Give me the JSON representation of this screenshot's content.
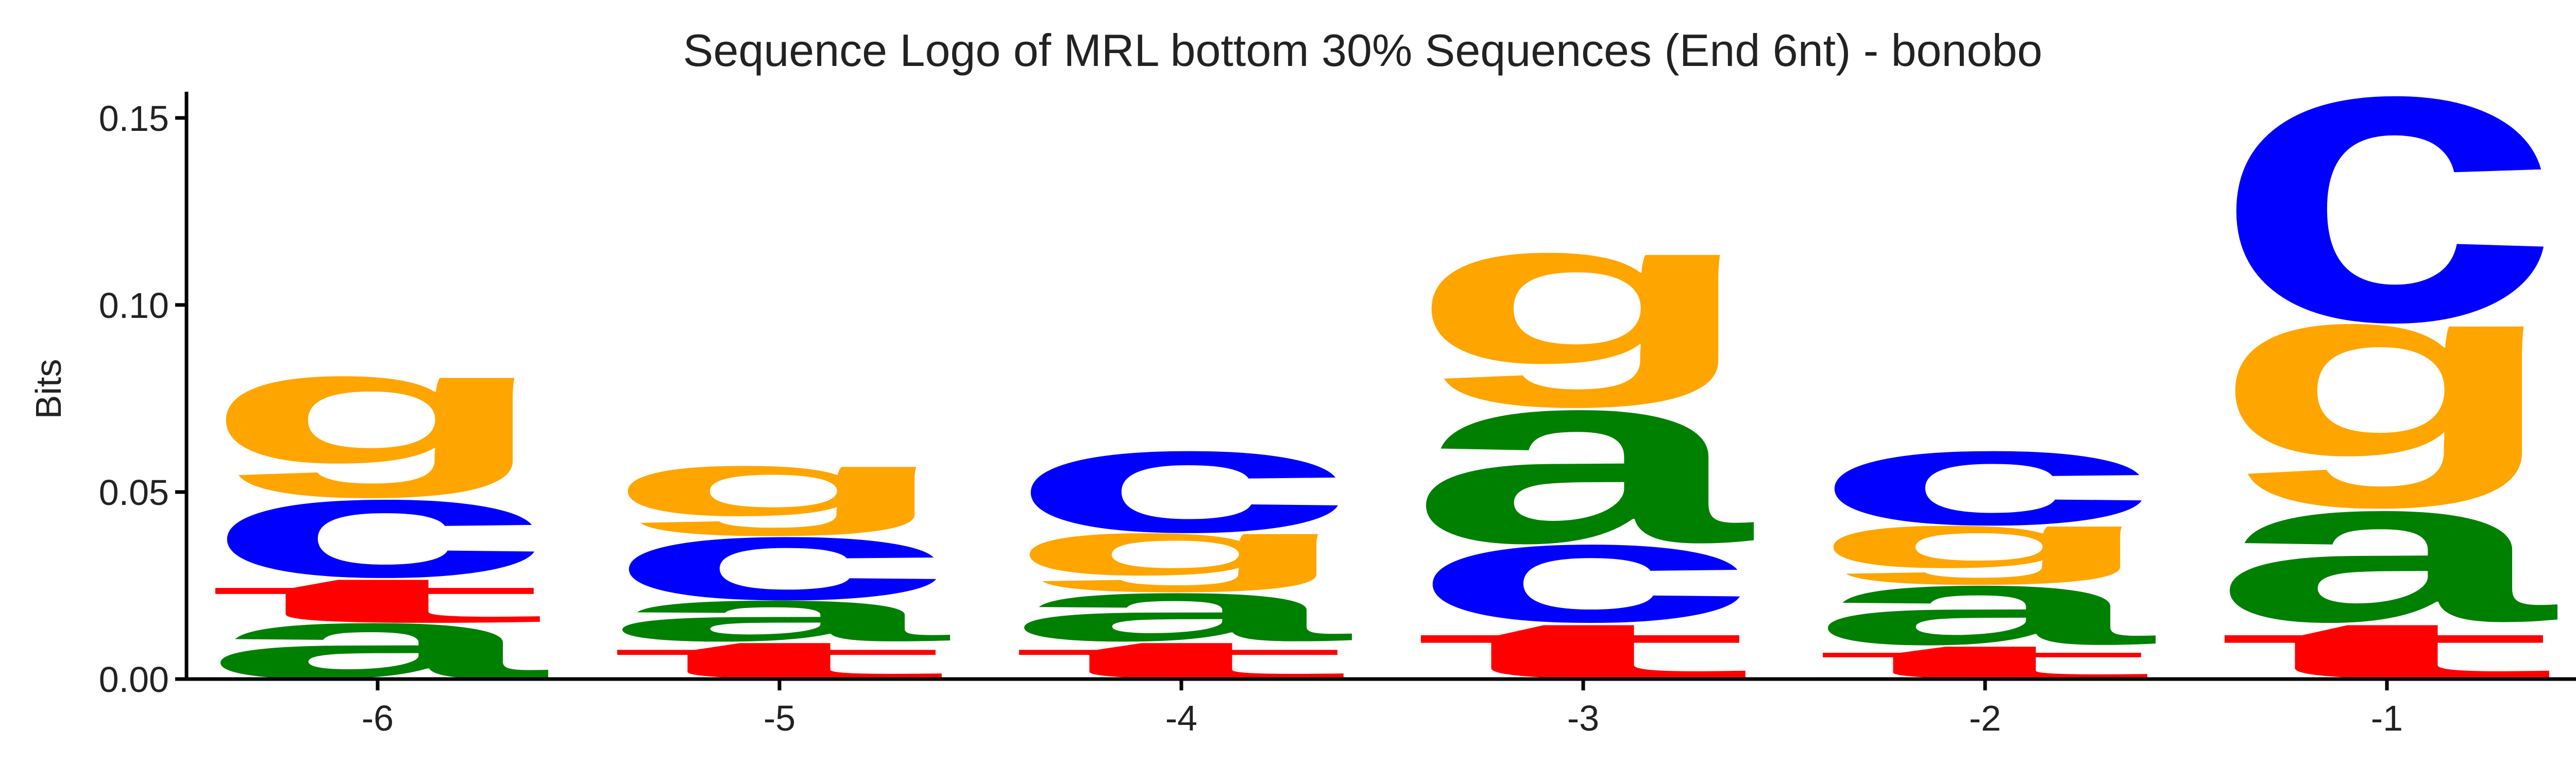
{
  "chart_data": {
    "type": "sequence_logo",
    "title": "Sequence Logo of MRL bottom 30% Sequences (End 6nt) - bonobo",
    "ylabel": "Bits",
    "xlabel": "",
    "ylim": [
      0,
      0.157
    ],
    "yticks": [
      0.0,
      0.05,
      0.1,
      0.15
    ],
    "ytick_labels": [
      "0.00",
      "0.05",
      "0.10",
      "0.15"
    ],
    "positions": [
      "-6",
      "-5",
      "-4",
      "-3",
      "-2",
      "-1"
    ],
    "colors": {
      "a": "#008000",
      "c": "#0000ff",
      "g": "#ffa500",
      "t": "#ff0000"
    },
    "stacks": [
      {
        "position": "-6",
        "letters": [
          {
            "base": "a",
            "height": 0.015
          },
          {
            "base": "t",
            "height": 0.012
          },
          {
            "base": "c",
            "height": 0.021
          },
          {
            "base": "g",
            "height": 0.033
          }
        ]
      },
      {
        "position": "-5",
        "letters": [
          {
            "base": "t",
            "height": 0.01
          },
          {
            "base": "a",
            "height": 0.011
          },
          {
            "base": "c",
            "height": 0.017
          },
          {
            "base": "g",
            "height": 0.019
          }
        ]
      },
      {
        "position": "-4",
        "letters": [
          {
            "base": "t",
            "height": 0.01
          },
          {
            "base": "a",
            "height": 0.013
          },
          {
            "base": "g",
            "height": 0.016
          },
          {
            "base": "c",
            "height": 0.022
          }
        ]
      },
      {
        "position": "-3",
        "letters": [
          {
            "base": "t",
            "height": 0.015
          },
          {
            "base": "c",
            "height": 0.021
          },
          {
            "base": "a",
            "height": 0.036
          },
          {
            "base": "g",
            "height": 0.042
          }
        ]
      },
      {
        "position": "-2",
        "letters": [
          {
            "base": "t",
            "height": 0.009
          },
          {
            "base": "a",
            "height": 0.016
          },
          {
            "base": "g",
            "height": 0.016
          },
          {
            "base": "c",
            "height": 0.02
          }
        ]
      },
      {
        "position": "-1",
        "letters": [
          {
            "base": "t",
            "height": 0.015
          },
          {
            "base": "a",
            "height": 0.03
          },
          {
            "base": "g",
            "height": 0.05
          },
          {
            "base": "c",
            "height": 0.061
          }
        ]
      }
    ]
  }
}
